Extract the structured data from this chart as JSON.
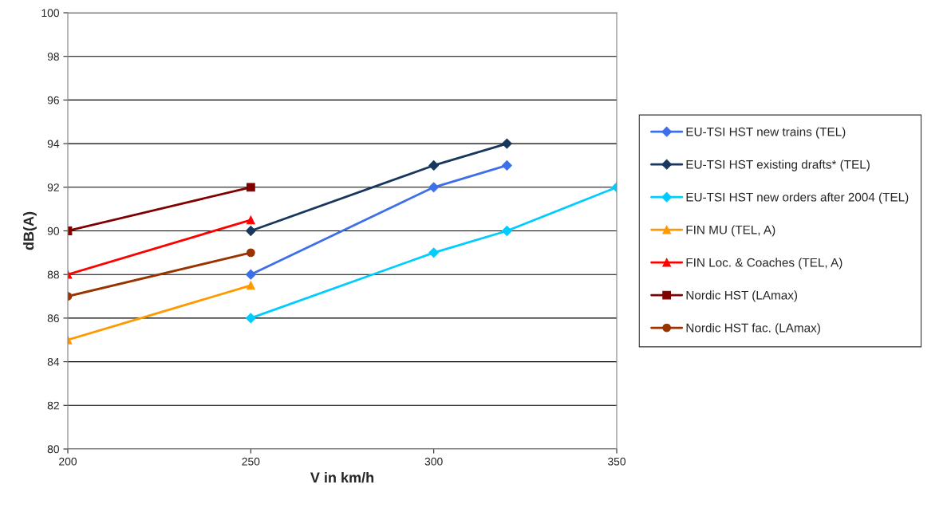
{
  "chart_data": {
    "type": "line",
    "xlabel": "V in km/h",
    "ylabel": "dB(A)",
    "xlim": [
      200,
      350
    ],
    "xticks": [
      200,
      250,
      300,
      350
    ],
    "ylim": [
      80,
      100
    ],
    "yticks": [
      80,
      82,
      84,
      86,
      88,
      90,
      92,
      94,
      96,
      98,
      100
    ],
    "grid": "y",
    "legend": "right",
    "line_style": "solid",
    "series": [
      {
        "name": "EU-TSI HST new trains (TEL)",
        "color": "#3f6fe8",
        "marker": "diamond",
        "x": [
          250,
          300,
          320
        ],
        "values": [
          88,
          92,
          93
        ]
      },
      {
        "name": "EU-TSI HST existing drafts* (TEL)",
        "color": "#17375e",
        "marker": "diamond",
        "x": [
          250,
          300,
          320
        ],
        "values": [
          90,
          93,
          94
        ]
      },
      {
        "name": "EU-TSI HST new orders after 2004 (TEL)",
        "color": "#00ccff",
        "marker": "diamond",
        "x": [
          250,
          300,
          320,
          350
        ],
        "values": [
          86,
          89,
          90,
          92
        ]
      },
      {
        "name": "FIN MU (TEL, A)",
        "color": "#ff9900",
        "marker": "triangle",
        "x": [
          200,
          250
        ],
        "values": [
          85,
          87.5
        ]
      },
      {
        "name": "FIN Loc. & Coaches (TEL, A)",
        "color": "#ff0000",
        "marker": "triangle",
        "x": [
          200,
          250
        ],
        "values": [
          88,
          90.5
        ]
      },
      {
        "name": "Nordic HST (LAmax)",
        "color": "#800000",
        "marker": "square",
        "x": [
          200,
          250
        ],
        "values": [
          90,
          92
        ]
      },
      {
        "name": "Nordic HST fac. (LAmax)",
        "color": "#993300",
        "marker": "circle",
        "x": [
          200,
          250
        ],
        "values": [
          87,
          89
        ]
      }
    ]
  }
}
